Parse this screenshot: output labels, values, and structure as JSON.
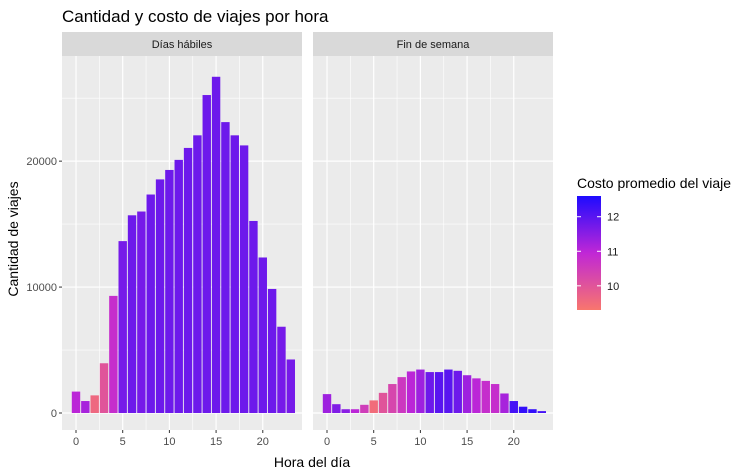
{
  "chart_data": {
    "type": "bar",
    "title": "Cantidad y costo de viajes por hora",
    "xlabel": "Hora del día",
    "ylabel": "Cantidad de viajes",
    "x_ticks": [
      0,
      5,
      10,
      15,
      20
    ],
    "y_ticks": [
      0,
      10000,
      20000
    ],
    "y_tick_labels": [
      "0",
      "10000",
      "20000"
    ],
    "xlim": [
      -1.5,
      24.2
    ],
    "ylim": [
      -1350,
      28350
    ],
    "grid": true,
    "legend_position": "right",
    "colors": {
      "low": "#F8766D",
      "mid": "#C027D6",
      "high": "#1E0BFF",
      "panel_bg": "#EBEBEB",
      "strip_bg": "#D9D9D9"
    },
    "legend": {
      "title": "Costo promedio del viaje",
      "ticks": [
        10,
        11,
        12
      ],
      "tick_labels": [
        "10",
        "11",
        "12"
      ],
      "range": [
        9.3,
        12.6
      ]
    },
    "hours": [
      0,
      1,
      2,
      3,
      4,
      5,
      6,
      7,
      8,
      9,
      10,
      11,
      12,
      13,
      14,
      15,
      16,
      17,
      18,
      19,
      20,
      21,
      22,
      23
    ],
    "panels": [
      {
        "label": "Días hábiles",
        "counts": [
          1700,
          950,
          1400,
          3950,
          9300,
          13650,
          15700,
          16000,
          17350,
          18550,
          19300,
          20100,
          21050,
          22050,
          25250,
          26700,
          23100,
          22050,
          21250,
          15250,
          12350,
          9850,
          6850,
          4250
        ],
        "avg_cost": [
          11.0,
          11.2,
          9.6,
          10.0,
          10.8,
          11.7,
          11.8,
          11.7,
          11.8,
          11.8,
          11.8,
          11.8,
          11.8,
          11.8,
          11.8,
          11.8,
          11.8,
          11.8,
          11.8,
          11.8,
          11.8,
          11.8,
          11.7,
          11.7
        ]
      },
      {
        "label": "Fin de semana",
        "counts": [
          1500,
          700,
          300,
          300,
          650,
          1000,
          1600,
          2300,
          2850,
          3300,
          3450,
          3250,
          3250,
          3450,
          3350,
          3000,
          2750,
          2550,
          2300,
          1550,
          950,
          500,
          300,
          150
        ],
        "avg_cost": [
          11.3,
          11.6,
          11.5,
          11.0,
          10.5,
          9.5,
          10.0,
          10.3,
          10.6,
          11.0,
          11.3,
          11.8,
          12.0,
          12.0,
          11.8,
          11.3,
          11.0,
          10.8,
          10.8,
          11.2,
          12.2,
          12.4,
          12.4,
          12.2
        ]
      }
    ]
  }
}
